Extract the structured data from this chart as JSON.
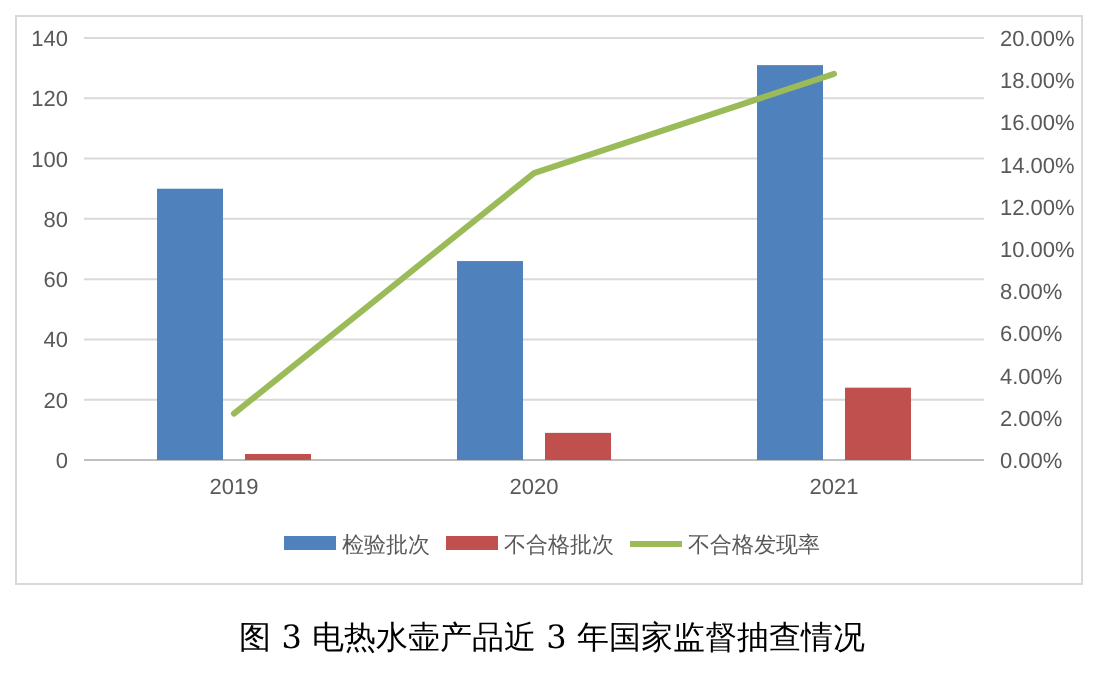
{
  "chart_data": {
    "type": "bar",
    "title": "图 3  电热水壶产品近 3 年国家监督抽查情况",
    "categories": [
      "2019",
      "2020",
      "2021"
    ],
    "series": [
      {
        "name": "检验批次",
        "color": "#4f81bd",
        "values": [
          90,
          66,
          131
        ]
      },
      {
        "name": "不合格批次",
        "color": "#c0504d",
        "values": [
          2,
          9,
          24
        ]
      },
      {
        "name": "不合格发现率",
        "type": "line",
        "axis": "y2",
        "color": "#9bbb59",
        "values": [
          2.2,
          13.6,
          18.3
        ]
      }
    ],
    "ylim": [
      0,
      140
    ],
    "yticks": [
      0,
      20,
      40,
      60,
      80,
      100,
      120,
      140
    ],
    "y2lim": [
      0,
      20
    ],
    "y2ticks": [
      {
        "value": 0,
        "label": "0.00%"
      },
      {
        "value": 2,
        "label": "2.00%"
      },
      {
        "value": 4,
        "label": "4.00%"
      },
      {
        "value": 6,
        "label": "6.00%"
      },
      {
        "value": 8,
        "label": "8.00%"
      },
      {
        "value": 10,
        "label": "10.00%"
      },
      {
        "value": 12,
        "label": "12.00%"
      },
      {
        "value": 14,
        "label": "14.00%"
      },
      {
        "value": 16,
        "label": "16.00%"
      },
      {
        "value": 18,
        "label": "18.00%"
      },
      {
        "value": 20,
        "label": "20.00%"
      }
    ],
    "grid": "y",
    "legend": "bottom"
  }
}
